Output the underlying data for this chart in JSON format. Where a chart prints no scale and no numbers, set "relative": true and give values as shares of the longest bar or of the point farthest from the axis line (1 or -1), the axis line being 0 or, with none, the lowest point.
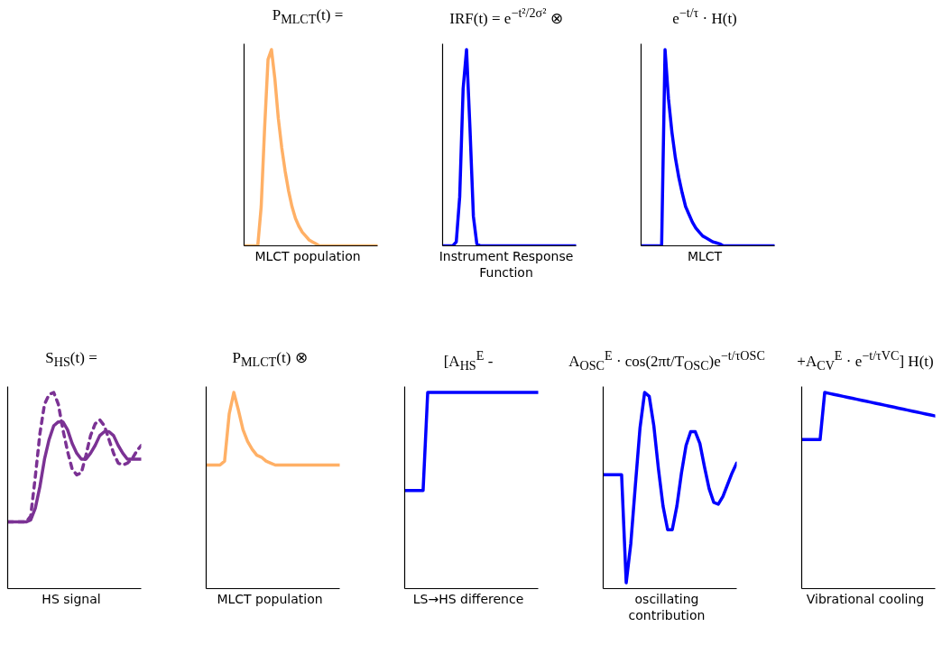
{
  "chart_data": [
    {
      "type": "line",
      "title": "P$_{MLCT}$(t) =",
      "xlabel": "MLCT population",
      "relative": true,
      "categories": [
        null,
        null,
        null,
        null,
        null,
        null,
        null,
        null,
        null,
        null,
        null,
        null,
        null,
        null,
        null,
        null,
        null,
        null,
        null,
        null,
        null,
        null,
        null,
        null,
        null,
        null,
        null,
        null,
        null,
        null,
        null,
        null,
        null,
        null,
        null,
        null,
        null,
        null,
        null,
        null
      ],
      "series": [
        {
          "color": "#ffb066",
          "line_style": "solid",
          "values": [
            0,
            0,
            0,
            0,
            0,
            0.2,
            0.6,
            0.95,
            1,
            0.85,
            0.65,
            0.5,
            0.38,
            0.28,
            0.2,
            0.14,
            0.1,
            0.07,
            0.05,
            0.03,
            0.02,
            0.01,
            0,
            0,
            0,
            0,
            0,
            0,
            0,
            0,
            0,
            0,
            0,
            0,
            0,
            0,
            0,
            0,
            0,
            0
          ]
        }
      ]
    },
    {
      "type": "line",
      "title": "IRF(t) = e$^{−t²/2σ²}$ ⊗",
      "xlabel": "Instrument Response Function",
      "relative": true,
      "categories": [
        null,
        null,
        null,
        null,
        null,
        null,
        null,
        null,
        null,
        null,
        null,
        null,
        null,
        null,
        null,
        null,
        null,
        null,
        null,
        null,
        null,
        null,
        null,
        null,
        null,
        null,
        null,
        null,
        null,
        null,
        null,
        null,
        null,
        null,
        null,
        null,
        null,
        null,
        null,
        null
      ],
      "series": [
        {
          "color": "#0000ff",
          "line_style": "solid",
          "values": [
            0,
            0,
            0,
            0,
            0.02,
            0.25,
            0.8,
            1,
            0.6,
            0.15,
            0.01,
            0,
            0,
            0,
            0,
            0,
            0,
            0,
            0,
            0,
            0,
            0,
            0,
            0,
            0,
            0,
            0,
            0,
            0,
            0,
            0,
            0,
            0,
            0,
            0,
            0,
            0,
            0,
            0,
            0
          ]
        }
      ]
    },
    {
      "type": "line",
      "title": "e$^{−t/τ}$ · H(t)",
      "xlabel": "MLCT",
      "relative": true,
      "categories": [
        null,
        null,
        null,
        null,
        null,
        null,
        null,
        null,
        null,
        null,
        null,
        null,
        null,
        null,
        null,
        null,
        null,
        null,
        null,
        null,
        null,
        null,
        null,
        null,
        null,
        null,
        null,
        null,
        null,
        null,
        null,
        null,
        null,
        null,
        null,
        null,
        null,
        null,
        null,
        null
      ],
      "series": [
        {
          "color": "#0000ff",
          "line_style": "solid",
          "values": [
            0,
            0,
            0,
            0,
            0,
            0,
            0,
            1,
            0.75,
            0.58,
            0.45,
            0.35,
            0.27,
            0.2,
            0.16,
            0.12,
            0.09,
            0.07,
            0.05,
            0.04,
            0.03,
            0.02,
            0.015,
            0.01,
            0,
            0,
            0,
            0,
            0,
            0,
            0,
            0,
            0,
            0,
            0,
            0,
            0,
            0,
            0,
            0
          ]
        }
      ]
    },
    {
      "type": "line",
      "title": "S$_{HS}$(t) =",
      "xlabel": "HS signal",
      "relative": true,
      "categories": [
        null,
        null,
        null,
        null,
        null,
        null,
        null,
        null,
        null,
        null,
        null,
        null,
        null,
        null,
        null,
        null,
        null,
        null,
        null,
        null,
        null,
        null,
        null,
        null,
        null,
        null,
        null,
        null,
        null,
        null
      ],
      "series": [
        {
          "color": "#7b3294",
          "line_style": "solid",
          "values": [
            0.34,
            0.34,
            0.34,
            0.34,
            0.34,
            0.35,
            0.41,
            0.52,
            0.66,
            0.76,
            0.83,
            0.85,
            0.85,
            0.81,
            0.74,
            0.69,
            0.66,
            0.66,
            0.69,
            0.73,
            0.78,
            0.8,
            0.8,
            0.78,
            0.73,
            0.69,
            0.66,
            0.66,
            0.66,
            0.66
          ]
        },
        {
          "color": "#7b3294",
          "line_style": "dashed",
          "values": [
            0.34,
            0.34,
            0.34,
            0.34,
            0.34,
            0.37,
            0.57,
            0.79,
            0.94,
            0.99,
            1,
            0.94,
            0.81,
            0.7,
            0.61,
            0.58,
            0.59,
            0.68,
            0.78,
            0.84,
            0.86,
            0.83,
            0.76,
            0.69,
            0.64,
            0.63,
            0.64,
            0.66,
            0.7,
            0.73
          ]
        }
      ]
    },
    {
      "type": "line",
      "title": "P$_{MLCT}$(t) ⊗",
      "xlabel": "MLCT population",
      "relative": true,
      "categories": [
        null,
        null,
        null,
        null,
        null,
        null,
        null,
        null,
        null,
        null,
        null,
        null,
        null,
        null,
        null,
        null,
        null,
        null,
        null,
        null,
        null,
        null,
        null,
        null,
        null,
        null,
        null,
        null,
        null,
        null
      ],
      "series": [
        {
          "color": "#ffb066",
          "line_style": "solid",
          "values": [
            0.63,
            0.63,
            0.63,
            0.63,
            0.65,
            0.89,
            1,
            0.91,
            0.81,
            0.75,
            0.71,
            0.68,
            0.67,
            0.65,
            0.64,
            0.63,
            0.63,
            0.63,
            0.63,
            0.63,
            0.63,
            0.63,
            0.63,
            0.63,
            0.63,
            0.63,
            0.63,
            0.63,
            0.63,
            0.63
          ]
        }
      ]
    },
    {
      "type": "line",
      "title": "[A$_{HS}$$^{E}$ -",
      "xlabel": "LS→HS difference",
      "relative": true,
      "categories": [
        null,
        null,
        null,
        null,
        null,
        null,
        null,
        null,
        null,
        null,
        null,
        null,
        null,
        null,
        null,
        null,
        null,
        null,
        null,
        null,
        null,
        null,
        null,
        null,
        null,
        null,
        null,
        null,
        null,
        null
      ],
      "series": [
        {
          "color": "#0000ff",
          "line_style": "solid",
          "values": [
            0.5,
            0.5,
            0.5,
            0.5,
            0.5,
            1,
            1,
            1,
            1,
            1,
            1,
            1,
            1,
            1,
            1,
            1,
            1,
            1,
            1,
            1,
            1,
            1,
            1,
            1,
            1,
            1,
            1,
            1,
            1,
            1
          ]
        }
      ]
    },
    {
      "type": "line",
      "title": "A$_{OSC}$$^{E}$ · cos(2πt/T$_{OSC}$)e$^{−t/τOSC}$",
      "xlabel": "oscillating contribution",
      "relative": true,
      "categories": [
        null,
        null,
        null,
        null,
        null,
        null,
        null,
        null,
        null,
        null,
        null,
        null,
        null,
        null,
        null,
        null,
        null,
        null,
        null,
        null,
        null,
        null,
        null,
        null,
        null,
        null,
        null,
        null,
        null,
        null
      ],
      "series": [
        {
          "color": "#0000ff",
          "line_style": "solid",
          "values": [
            0.58,
            0.58,
            0.58,
            0.58,
            0.58,
            0.03,
            0.23,
            0.53,
            0.82,
            1,
            0.98,
            0.83,
            0.61,
            0.42,
            0.3,
            0.3,
            0.42,
            0.59,
            0.73,
            0.8,
            0.8,
            0.74,
            0.62,
            0.51,
            0.44,
            0.43,
            0.47,
            0.53,
            0.59,
            0.64
          ]
        }
      ]
    },
    {
      "type": "line",
      "title": "+A$_{CV}$$^{E}$ · e$^{−t/τVC}$] H(t)",
      "xlabel": "Vibrational cooling",
      "relative": true,
      "categories": [
        null,
        null,
        null,
        null,
        null,
        null,
        null,
        null,
        null,
        null,
        null,
        null,
        null,
        null,
        null,
        null,
        null,
        null,
        null,
        null,
        null,
        null,
        null,
        null,
        null,
        null,
        null,
        null,
        null,
        null
      ],
      "series": [
        {
          "color": "#0000ff",
          "line_style": "solid",
          "values": [
            0.76,
            0.76,
            0.76,
            0.76,
            0.76,
            1,
            0.995,
            0.99,
            0.985,
            0.98,
            0.975,
            0.97,
            0.965,
            0.96,
            0.955,
            0.95,
            0.945,
            0.94,
            0.935,
            0.93,
            0.925,
            0.92,
            0.915,
            0.91,
            0.905,
            0.9,
            0.895,
            0.89,
            0.885,
            0.88
          ]
        }
      ]
    }
  ]
}
